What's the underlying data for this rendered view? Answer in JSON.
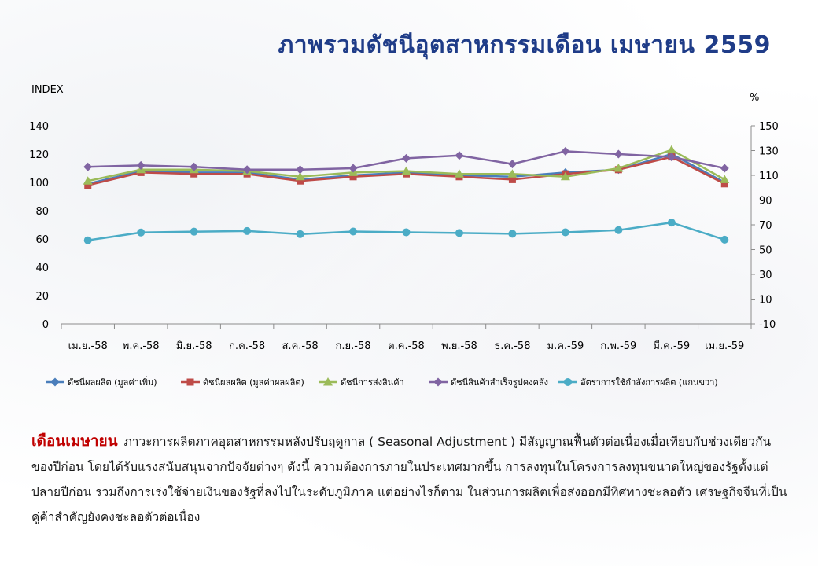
{
  "title": "ภาพรวมดัชนีอุตสาหกรรมเดือน เมษายน 2559",
  "chart_data": {
    "type": "line",
    "left_axis_label": "INDEX",
    "right_axis_label": "%",
    "left_ylim": [
      0,
      140
    ],
    "left_ticks": [
      "0",
      "20",
      "40",
      "60",
      "80",
      "100",
      "120",
      "140"
    ],
    "right_ylim": [
      -10,
      150
    ],
    "right_ticks": [
      "-10",
      "10",
      "30",
      "50",
      "70",
      "90",
      "110",
      "130",
      "150"
    ],
    "categories": [
      "เม.ย.-58",
      "พ.ค.-58",
      "มิ.ย.-58",
      "ก.ค.-58",
      "ส.ค.-58",
      "ก.ย.-58",
      "ต.ค.-58",
      "พ.ย.-58",
      "ธ.ค.-58",
      "ม.ค.-59",
      "ก.พ.-59",
      "มี.ค.-59",
      "เม.ย.-59"
    ],
    "grid": false,
    "legend_placement": "bottom",
    "series": [
      {
        "name": "ดัชนีผลผลิต (มูลค่าเพิ่ม)",
        "axis": "left",
        "color": "#4a7ebb",
        "marker": "diamond",
        "values": [
          99,
          108,
          107,
          107,
          102,
          105,
          107,
          105,
          104,
          107,
          109,
          120,
          100
        ]
      },
      {
        "name": "ดัชนีผลผลิต (มูลค่าผลผลิต)",
        "axis": "left",
        "color": "#be4b48",
        "marker": "square",
        "values": [
          98,
          107,
          106,
          106,
          101,
          104,
          106,
          104,
          102,
          106,
          109,
          118,
          99
        ]
      },
      {
        "name": "ดัชนีการส่งสินค้า",
        "axis": "left",
        "color": "#9bbb59",
        "marker": "triangle",
        "values": [
          101,
          109,
          109,
          108,
          104,
          107,
          108,
          106,
          106,
          104,
          110,
          123,
          102
        ]
      },
      {
        "name": "ดัชนีสินค้าสำเร็จรูปคงคลัง",
        "axis": "left",
        "color": "#8064a2",
        "marker": "diamond",
        "values": [
          111,
          112,
          111,
          109,
          109,
          110,
          117,
          119,
          113,
          122,
          120,
          118,
          110
        ]
      },
      {
        "name": "อัตราการใช้กำลังการผลิต (แกนขวา)",
        "axis": "right",
        "color": "#4bacc6",
        "marker": "circle",
        "values": [
          57.5,
          63.8,
          64.5,
          65.0,
          62.5,
          64.6,
          64.0,
          63.4,
          62.8,
          64.0,
          65.7,
          71.8,
          58.0
        ]
      }
    ]
  },
  "paragraph": {
    "lead": "เดือนเมษายน",
    "body": "ภาวะการผลิตภาคอุตสาหกรรมหลังปรับฤดูกาล ( Seasonal Adjustment ) มีสัญญาณฟื้นตัวต่อเนื่องเมื่อเทียบกับช่วงเดียวกันของปีก่อน โดยได้รับแรงสนับสนุนจากปัจจัยต่างๆ ดังนี้ ความต้องการภายในประเทศมากขึ้น การลงทุนในโครงการลงทุนขนาดใหญ่ของรัฐตั้งแต่ปลายปีก่อน รวมถึงการเร่งใช้จ่ายเงินของรัฐที่ลงไปในระดับภูมิภาค แต่อย่างไรก็ตาม ในส่วนการผลิตเพื่อส่งออกมีทิศทางชะลอตัว เศรษฐกิจจีนที่เป็นคู่ค้าสำคัญยังคงชะลอตัวต่อเนื่อง"
  }
}
